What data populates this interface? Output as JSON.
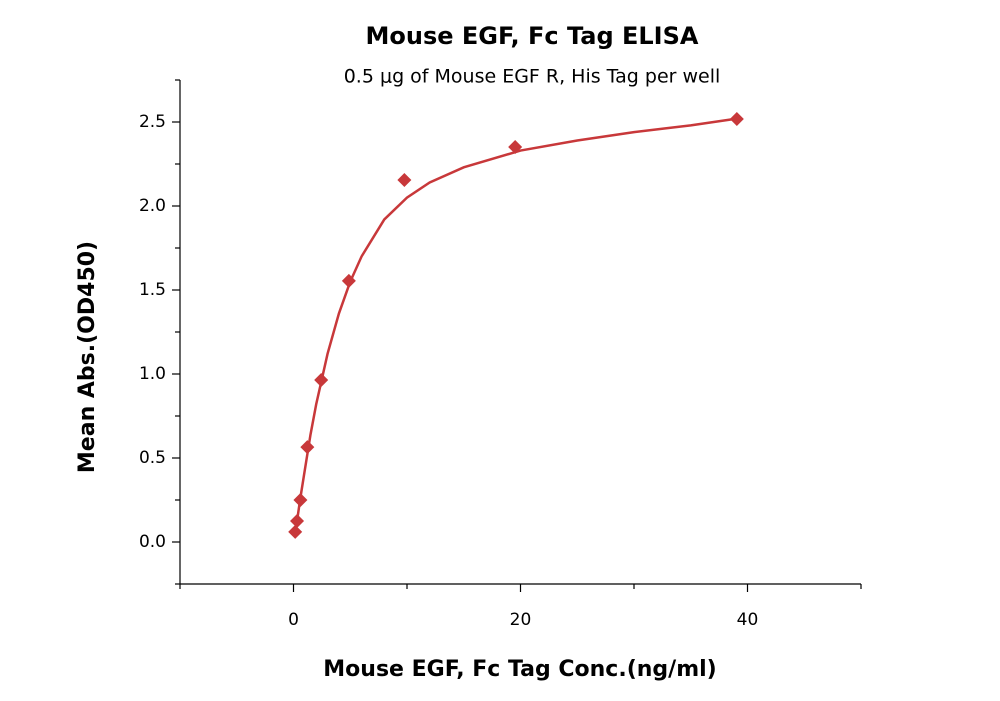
{
  "chart_data": {
    "type": "scatter",
    "title": "Mouse EGF, Fc Tag ELISA",
    "subtitle": "0.5 μg of Mouse EGF R, His Tag per well",
    "x_label": "Mouse EGF, Fc Tag Conc.(ng/ml)",
    "y_label": "Mean Abs.(OD450)",
    "xlim": [
      -10,
      50
    ],
    "xticks": [
      0,
      20,
      40
    ],
    "xminor_ticks": [
      -10,
      10,
      30,
      50
    ],
    "ylim": [
      -0.25,
      2.75
    ],
    "yticks": [
      {
        "value": 0,
        "label": "0.0"
      },
      0.5,
      {
        "value": 1,
        "label": "1.0"
      },
      1.5,
      {
        "value": 2,
        "label": "2.0"
      },
      2.5
    ],
    "yminor_ticks": [
      -0.25,
      0.25,
      0.75,
      1.25,
      1.75,
      2.25,
      2.75
    ],
    "series": [
      {
        "type": "scatter",
        "color": "#c8383a",
        "x": [
          0.15,
          0.31,
          0.61,
          1.22,
          2.44,
          4.88,
          9.77,
          19.53,
          39.06
        ],
        "values": [
          0.06,
          0.125,
          0.25,
          0.565,
          0.964,
          1.554,
          2.155,
          2.351,
          2.518
        ]
      },
      {
        "type": "line",
        "color": "#c8383a",
        "x": [
          0.3,
          0.6,
          1,
          1.5,
          2,
          3,
          4,
          5,
          6,
          8,
          10,
          12,
          15,
          20,
          25,
          30,
          35,
          39.06
        ],
        "values": [
          0.12,
          0.26,
          0.43,
          0.64,
          0.82,
          1.12,
          1.36,
          1.55,
          1.7,
          1.92,
          2.05,
          2.14,
          2.23,
          2.33,
          2.39,
          2.44,
          2.48,
          2.52
        ]
      }
    ]
  }
}
